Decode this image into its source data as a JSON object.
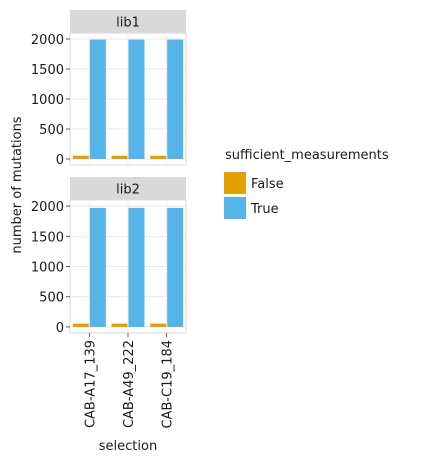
{
  "chart_data": {
    "type": "bar",
    "facet_by": "library",
    "panels": [
      {
        "label": "lib1",
        "categories": [
          "CAB-A17_139",
          "CAB-A49_222",
          "CAB-C19_184"
        ],
        "series": [
          {
            "name": "False",
            "color": "#E69F00",
            "values": [
              55,
              55,
              55
            ]
          },
          {
            "name": "True",
            "color": "#56B4E9",
            "values": [
              1990,
              1990,
              1990
            ]
          }
        ]
      },
      {
        "label": "lib2",
        "categories": [
          "CAB-A17_139",
          "CAB-A49_222",
          "CAB-C19_184"
        ],
        "series": [
          {
            "name": "False",
            "color": "#E69F00",
            "values": [
              55,
              55,
              55
            ]
          },
          {
            "name": "True",
            "color": "#56B4E9",
            "values": [
              1970,
              1970,
              1970
            ]
          }
        ]
      }
    ],
    "xlabel": "selection",
    "ylabel": "number of mutations",
    "ylim": [
      -100,
      2100
    ],
    "yticks": [
      0,
      500,
      1000,
      1500,
      2000
    ],
    "grid": true,
    "legend": {
      "title": "sufficient_measurements",
      "position": "right",
      "entries": [
        {
          "label": "False",
          "color": "#E69F00"
        },
        {
          "label": "True",
          "color": "#56B4E9"
        }
      ]
    }
  }
}
